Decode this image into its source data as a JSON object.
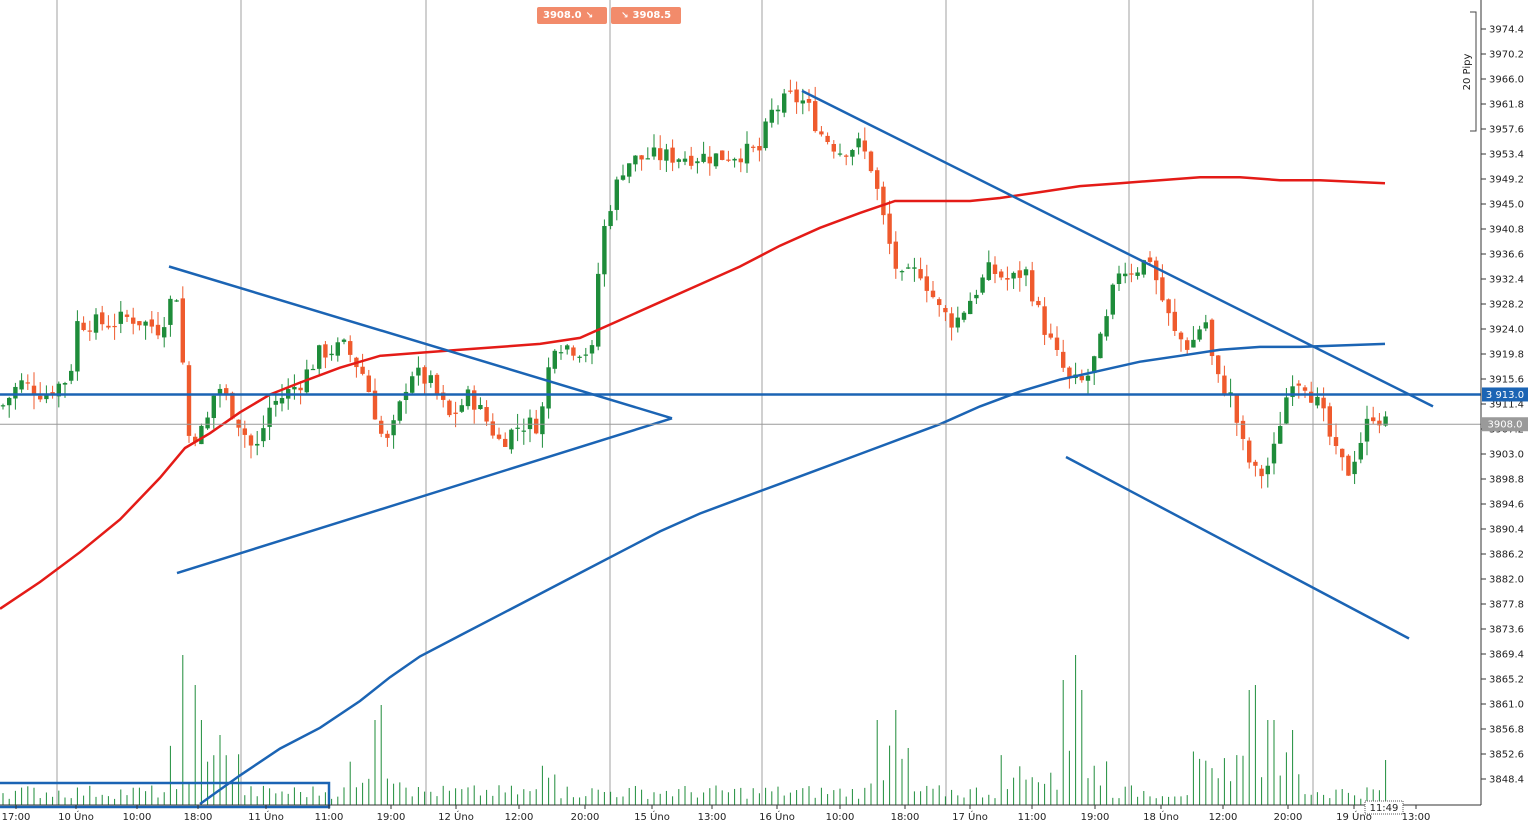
{
  "chart_data": {
    "type": "candlestick",
    "price_axis": {
      "min": 3844.2,
      "max": 3978.6,
      "ticks": [
        3974.4,
        3970.2,
        3966.0,
        3961.8,
        3957.6,
        3953.4,
        3949.2,
        3945.0,
        3940.8,
        3936.6,
        3932.4,
        3928.2,
        3924.0,
        3919.8,
        3915.6,
        3911.4,
        3907.2,
        3903.0,
        3898.8,
        3894.6,
        3890.4,
        3886.2,
        3882.0,
        3877.8,
        3873.6,
        3869.4,
        3865.2,
        3861.0,
        3856.8,
        3852.6,
        3848.4
      ]
    },
    "time_axis": {
      "labels": [
        {
          "x": 16,
          "text": "17:00"
        },
        {
          "x": 76,
          "text": "10 Úno"
        },
        {
          "x": 137,
          "text": "10:00"
        },
        {
          "x": 198,
          "text": "18:00"
        },
        {
          "x": 266,
          "text": "11 Úno"
        },
        {
          "x": 329,
          "text": "11:00"
        },
        {
          "x": 391,
          "text": "19:00"
        },
        {
          "x": 456,
          "text": "12 Úno"
        },
        {
          "x": 519,
          "text": "12:00"
        },
        {
          "x": 585,
          "text": "20:00"
        },
        {
          "x": 652,
          "text": "15 Úno"
        },
        {
          "x": 712,
          "text": "13:00"
        },
        {
          "x": 777,
          "text": "16 Úno"
        },
        {
          "x": 840,
          "text": "10:00"
        },
        {
          "x": 905,
          "text": "18:00"
        },
        {
          "x": 970,
          "text": "17 Úno"
        },
        {
          "x": 1032,
          "text": "11:00"
        },
        {
          "x": 1095,
          "text": "19:00"
        },
        {
          "x": 1161,
          "text": "18 Úno"
        },
        {
          "x": 1223,
          "text": "12:00"
        },
        {
          "x": 1288,
          "text": "20:00"
        },
        {
          "x": 1354,
          "text": "19 Úno"
        },
        {
          "x": 1416,
          "text": "13:00"
        }
      ]
    },
    "scale_label": "20 Pipy",
    "current_price_label": "3908.0",
    "horizontal_level_label": "3 913.0",
    "horizontal_level": 3913.0,
    "last_time_label": "11:49",
    "sell_price": "3908.0",
    "buy_price": "3908.5",
    "sma_slow": [
      [
        0,
        3877.0
      ],
      [
        40,
        3881.5
      ],
      [
        80,
        3886.5
      ],
      [
        120,
        3892.0
      ],
      [
        160,
        3899.0
      ],
      [
        185,
        3904.0
      ],
      [
        210,
        3906.5
      ],
      [
        240,
        3910.0
      ],
      [
        270,
        3913.0
      ],
      [
        300,
        3915.0
      ],
      [
        340,
        3917.5
      ],
      [
        380,
        3919.5
      ],
      [
        420,
        3920.0
      ],
      [
        460,
        3920.5
      ],
      [
        500,
        3921.0
      ],
      [
        540,
        3921.5
      ],
      [
        580,
        3922.5
      ],
      [
        620,
        3925.5
      ],
      [
        660,
        3928.5
      ],
      [
        700,
        3931.5
      ],
      [
        740,
        3934.5
      ],
      [
        780,
        3938.0
      ],
      [
        820,
        3941.0
      ],
      [
        860,
        3943.5
      ],
      [
        895,
        3945.5
      ],
      [
        930,
        3945.5
      ],
      [
        970,
        3945.5
      ],
      [
        1000,
        3946.0
      ],
      [
        1040,
        3947.0
      ],
      [
        1080,
        3948.0
      ],
      [
        1120,
        3948.5
      ],
      [
        1160,
        3949.0
      ],
      [
        1200,
        3949.5
      ],
      [
        1240,
        3949.5
      ],
      [
        1280,
        3949.0
      ],
      [
        1320,
        3949.0
      ],
      [
        1385,
        3948.5
      ]
    ],
    "sma_fast": [
      [
        200,
        3844.2
      ],
      [
        240,
        3849.0
      ],
      [
        280,
        3853.5
      ],
      [
        320,
        3857.0
      ],
      [
        360,
        3861.5
      ],
      [
        390,
        3865.5
      ],
      [
        420,
        3869.0
      ],
      [
        460,
        3872.5
      ],
      [
        500,
        3876.0
      ],
      [
        540,
        3879.5
      ],
      [
        580,
        3883.0
      ],
      [
        620,
        3886.5
      ],
      [
        660,
        3890.0
      ],
      [
        700,
        3893.0
      ],
      [
        740,
        3895.5
      ],
      [
        780,
        3898.0
      ],
      [
        820,
        3900.5
      ],
      [
        860,
        3903.0
      ],
      [
        900,
        3905.5
      ],
      [
        940,
        3908.0
      ],
      [
        980,
        3911.0
      ],
      [
        1020,
        3913.5
      ],
      [
        1060,
        3915.5
      ],
      [
        1100,
        3917.0
      ],
      [
        1140,
        3918.5
      ],
      [
        1180,
        3919.5
      ],
      [
        1220,
        3920.5
      ],
      [
        1260,
        3921.0
      ],
      [
        1300,
        3921.0
      ],
      [
        1385,
        3921.5
      ]
    ],
    "trendlines": [
      [
        [
          169,
          3934.5
        ],
        [
          672,
          3909.0
        ]
      ],
      [
        [
          177,
          3883.0
        ],
        [
          672,
          3909.0
        ]
      ],
      [
        [
          802,
          3964.0
        ],
        [
          1433,
          3911.0
        ]
      ],
      [
        [
          1066,
          3902.5
        ],
        [
          1409,
          3872.0
        ]
      ]
    ],
    "volume_baseline": 3844.2
  }
}
